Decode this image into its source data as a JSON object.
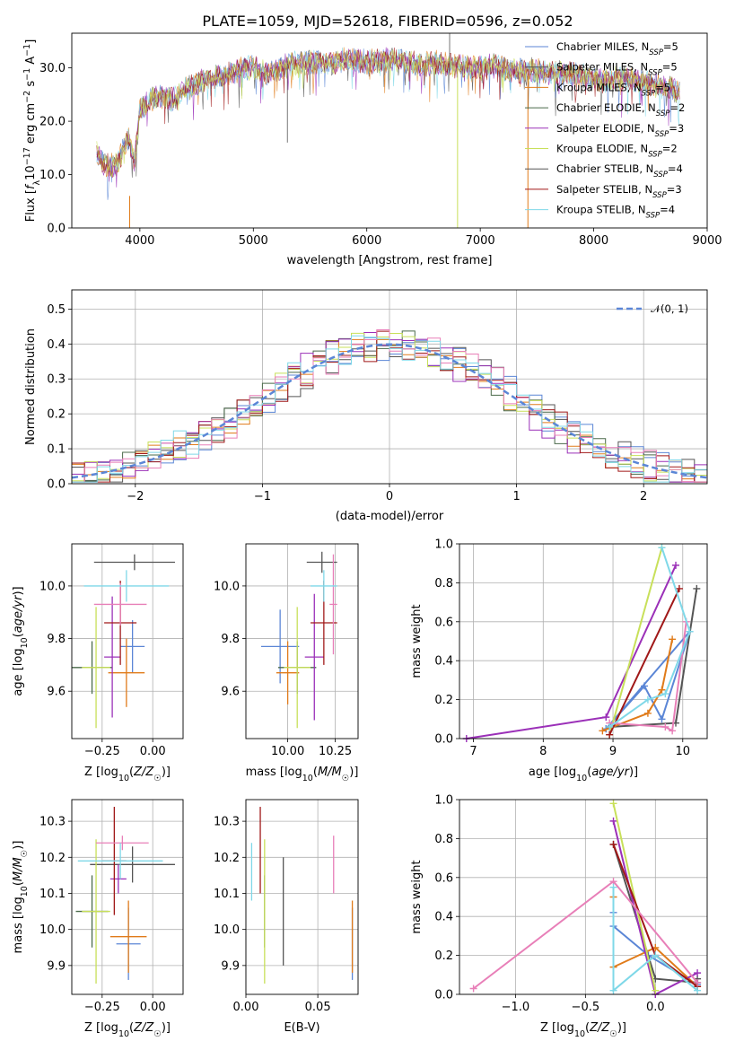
{
  "figure": {
    "title": "PLATE=1059, MJD=52618, FIBERID=0596, z=0.052"
  },
  "colors": {
    "Chabrier MILES": "#5b86d6",
    "Salpeter MILES": "#555555",
    "Kroupa MILES": "#e07b1a",
    "Chabrier ELODIE": "#4a6a4a",
    "Salpeter ELODIE": "#9b30b8",
    "Kroupa ELODIE": "#c8e05a",
    "Chabrier STELIB": "#555555",
    "Salpeter STELIB": "#a01818",
    "Kroupa STELIB": "#7fd8e8",
    "pink": "#e87fb8"
  },
  "chart_data": [
    {
      "type": "line",
      "id": "spectrum",
      "xlabel": "wavelength [Angstrom, rest frame]",
      "ylabel": "Flux [f_λ10^{-17} erg cm^{-2} s^{-1} A^{-1}]",
      "xlim": [
        3400,
        9000
      ],
      "ylim": [
        0,
        36.5
      ],
      "xticks": [
        4000,
        5000,
        6000,
        7000,
        8000,
        9000
      ],
      "yticks": [
        0,
        10,
        20,
        30
      ],
      "grid": false,
      "legend_position": "top-right",
      "legend": [
        {
          "label": "Chabrier MILES, N",
          "sub": "SSP",
          "suffix": "=5",
          "color": "#5b86d6"
        },
        {
          "label": "Salpeter MILES, N",
          "sub": "SSP",
          "suffix": "=5",
          "color": "#555555"
        },
        {
          "label": "Kroupa MILES, N",
          "sub": "SSP",
          "suffix": "=5",
          "color": "#e07b1a"
        },
        {
          "label": "Chabrier ELODIE, N",
          "sub": "SSP",
          "suffix": "=2",
          "color": "#4a6a4a"
        },
        {
          "label": "Salpeter ELODIE, N",
          "sub": "SSP",
          "suffix": "=3",
          "color": "#9b30b8"
        },
        {
          "label": "Kroupa ELODIE, N",
          "sub": "SSP",
          "suffix": "=2",
          "color": "#c8e05a"
        },
        {
          "label": "Chabrier STELIB, N",
          "sub": "SSP",
          "suffix": "=4",
          "color": "#555555"
        },
        {
          "label": "Salpeter STELIB, N",
          "sub": "SSP",
          "suffix": "=3",
          "color": "#a01818"
        },
        {
          "label": "Kroupa STELIB, N",
          "sub": "SSP",
          "suffix": "=4",
          "color": "#7fd8e8"
        }
      ],
      "continuum": [
        [
          3620,
          14
        ],
        [
          3700,
          11.5
        ],
        [
          3800,
          12
        ],
        [
          3900,
          17
        ],
        [
          3950,
          12
        ],
        [
          4000,
          22
        ],
        [
          4100,
          24
        ],
        [
          4200,
          25
        ],
        [
          4300,
          24
        ],
        [
          4400,
          26
        ],
        [
          4500,
          27
        ],
        [
          4600,
          28
        ],
        [
          4700,
          28.5
        ],
        [
          4800,
          29
        ],
        [
          4900,
          30
        ],
        [
          5000,
          30
        ],
        [
          5100,
          29
        ],
        [
          5200,
          29.5
        ],
        [
          5300,
          30.5
        ],
        [
          5400,
          31
        ],
        [
          5500,
          31
        ],
        [
          5600,
          31
        ],
        [
          5700,
          31
        ],
        [
          5800,
          31.5
        ],
        [
          5900,
          31.5
        ],
        [
          6000,
          31
        ],
        [
          6100,
          31.5
        ],
        [
          6200,
          31.5
        ],
        [
          6300,
          31.5
        ],
        [
          6400,
          31
        ],
        [
          6500,
          30.5
        ],
        [
          6600,
          31
        ],
        [
          6700,
          30.5
        ],
        [
          6800,
          30.5
        ],
        [
          6900,
          30
        ],
        [
          7000,
          30
        ],
        [
          7100,
          30.5
        ],
        [
          7200,
          30
        ],
        [
          7300,
          29.5
        ],
        [
          7400,
          29.5
        ],
        [
          7500,
          29.5
        ],
        [
          7600,
          29
        ],
        [
          7700,
          29
        ],
        [
          7800,
          29
        ],
        [
          7900,
          28.5
        ],
        [
          8000,
          28
        ],
        [
          8100,
          27.5
        ],
        [
          8200,
          28
        ],
        [
          8300,
          28
        ],
        [
          8400,
          27.5
        ],
        [
          8500,
          27
        ],
        [
          8600,
          26.5
        ],
        [
          8700,
          26
        ],
        [
          8760,
          25
        ]
      ]
    },
    {
      "type": "histogram",
      "id": "residuals",
      "xlabel": "(data-model)/error",
      "ylabel": "Normed distribution",
      "xlim": [
        -2.5,
        2.5
      ],
      "ylim": [
        0,
        0.555
      ],
      "xticks": [
        -2,
        -1,
        0,
        1,
        2
      ],
      "yticks": [
        0.0,
        0.1,
        0.2,
        0.3,
        0.4,
        0.5
      ],
      "grid": true,
      "legend_position": "top-right",
      "legend": [
        {
          "label": "𝒩(0, 1)",
          "color": "#5b86d6",
          "style": "dashed"
        }
      ],
      "bin_width": 0.1
    },
    {
      "type": "scatter",
      "id": "Z-vs-age",
      "xlabel": "Z [log10(Z/Z☉)]",
      "ylabel": "age [log10(age/yr)]",
      "xlim": [
        -0.4,
        0.15
      ],
      "ylim": [
        9.42,
        10.16
      ],
      "xticks": [
        -0.25,
        0.0
      ],
      "xticklabels": [
        "−0.25",
        "0.00"
      ],
      "yticks": [
        9.6,
        9.8,
        10.0
      ],
      "grid": true,
      "points": [
        {
          "x": -0.1,
          "y": 9.77,
          "xerr": 0.06,
          "yerr": 0.1,
          "color": "#5b86d6"
        },
        {
          "x": -0.09,
          "y": 10.09,
          "xerr": 0.2,
          "yerr": 0.03,
          "color": "#555555"
        },
        {
          "x": -0.13,
          "y": 9.67,
          "xerr": 0.09,
          "yerr": 0.13,
          "color": "#e07b1a"
        },
        {
          "x": -0.3,
          "y": 9.69,
          "xerr": 0.1,
          "yerr": 0.1,
          "color": "#4a6a4a"
        },
        {
          "x": -0.2,
          "y": 9.73,
          "xerr": 0.04,
          "yerr": 0.23,
          "color": "#9b30b8"
        },
        {
          "x": -0.28,
          "y": 9.69,
          "xerr": 0.07,
          "yerr": 0.23,
          "color": "#c8e05a"
        },
        {
          "x": -0.16,
          "y": 9.86,
          "xerr": 0.08,
          "yerr": 0.16,
          "color": "#a01818"
        },
        {
          "x": -0.16,
          "y": 9.93,
          "xerr": 0.13,
          "yerr": 0.08,
          "color": "#e87fb8"
        },
        {
          "x": -0.13,
          "y": 10.0,
          "xerr": 0.21,
          "yerr": 0.06,
          "color": "#7fd8e8"
        }
      ]
    },
    {
      "type": "scatter",
      "id": "mass-vs-age",
      "xlabel": "mass [log10(M/M☉)]",
      "ylabel": "",
      "xlim": [
        9.78,
        10.37
      ],
      "ylim": [
        9.42,
        10.16
      ],
      "xticks": [
        10.0,
        10.25
      ],
      "xticklabels": [
        "10.00",
        "10.25"
      ],
      "yticks": [
        9.6,
        9.8,
        10.0
      ],
      "grid": true,
      "points": [
        {
          "x": 9.96,
          "y": 9.77,
          "xerr": 0.1,
          "yerr": 0.14,
          "color": "#5b86d6"
        },
        {
          "x": 10.18,
          "y": 10.09,
          "xerr": 0.08,
          "yerr": 0.04,
          "color": "#555555"
        },
        {
          "x": 10.0,
          "y": 9.67,
          "xerr": 0.06,
          "yerr": 0.12,
          "color": "#e07b1a"
        },
        {
          "x": 10.05,
          "y": 9.69,
          "xerr": 0.1,
          "yerr": 0.1,
          "color": "#4a6a4a"
        },
        {
          "x": 10.14,
          "y": 9.73,
          "xerr": 0.05,
          "yerr": 0.24,
          "color": "#9b30b8"
        },
        {
          "x": 10.05,
          "y": 9.69,
          "xerr": 0.07,
          "yerr": 0.23,
          "color": "#c8e05a"
        },
        {
          "x": 10.19,
          "y": 9.86,
          "xerr": 0.07,
          "yerr": 0.16,
          "color": "#a01818"
        },
        {
          "x": 10.24,
          "y": 9.93,
          "xerr": 0.02,
          "yerr": 0.19,
          "color": "#e87fb8"
        },
        {
          "x": 10.19,
          "y": 10.0,
          "xerr": 0.07,
          "yerr": 0.06,
          "color": "#7fd8e8"
        }
      ]
    },
    {
      "type": "line",
      "id": "age-vs-weight",
      "xlabel": "age [log10(age/yr)]",
      "ylabel": "mass weight",
      "xlim": [
        6.8,
        10.35
      ],
      "ylim": [
        0,
        1.0
      ],
      "xticks": [
        7,
        8,
        9,
        10
      ],
      "yticks": [
        0.0,
        0.2,
        0.4,
        0.6,
        0.8,
        1.0
      ],
      "grid": true,
      "series": [
        {
          "color": "#5b86d6",
          "x": [
            8.9,
            9.45,
            9.7,
            10.1,
            8.9
          ],
          "y": [
            0.05,
            0.27,
            0.1,
            0.55,
            0.05
          ]
        },
        {
          "color": "#555555",
          "x": [
            8.95,
            9.9,
            10.2
          ],
          "y": [
            0.06,
            0.08,
            0.77
          ]
        },
        {
          "color": "#e07b1a",
          "x": [
            8.85,
            9.5,
            9.7,
            9.85
          ],
          "y": [
            0.04,
            0.13,
            0.25,
            0.51
          ]
        },
        {
          "color": "#9b30b8",
          "x": [
            6.9,
            8.9,
            9.9
          ],
          "y": [
            0.0,
            0.11,
            0.89
          ]
        },
        {
          "color": "#c8e05a",
          "x": [
            8.95,
            9.7
          ],
          "y": [
            0.02,
            0.98
          ]
        },
        {
          "color": "#a01818",
          "x": [
            8.95,
            9.95
          ],
          "y": [
            0.02,
            0.77
          ]
        },
        {
          "color": "#e87fb8",
          "x": [
            8.95,
            9.75,
            9.85,
            10.05
          ],
          "y": [
            0.08,
            0.06,
            0.04,
            0.6
          ]
        },
        {
          "color": "#7fd8e8",
          "x": [
            8.95,
            9.5,
            9.75,
            10.1,
            9.7
          ],
          "y": [
            0.06,
            0.2,
            0.23,
            0.55,
            0.98
          ]
        }
      ]
    },
    {
      "type": "scatter",
      "id": "Z-vs-mass",
      "xlabel": "Z [log10(Z/Z☉)]",
      "ylabel": "mass [log10(M/M☉)]",
      "xlim": [
        -0.4,
        0.15
      ],
      "ylim": [
        9.82,
        10.36
      ],
      "xticks": [
        -0.25,
        0.0
      ],
      "xticklabels": [
        "−0.25",
        "0.00"
      ],
      "yticks": [
        9.9,
        10.0,
        10.1,
        10.2,
        10.3
      ],
      "grid": true,
      "points": [
        {
          "x": -0.12,
          "y": 9.96,
          "xerr": 0.06,
          "yerr": 0.1,
          "color": "#5b86d6"
        },
        {
          "x": -0.1,
          "y": 10.18,
          "xerr": 0.21,
          "yerr": 0.05,
          "color": "#555555"
        },
        {
          "x": -0.12,
          "y": 9.98,
          "xerr": 0.09,
          "yerr": 0.1,
          "color": "#e07b1a"
        },
        {
          "x": -0.3,
          "y": 10.05,
          "xerr": 0.08,
          "yerr": 0.1,
          "color": "#4a6a4a"
        },
        {
          "x": -0.17,
          "y": 10.14,
          "xerr": 0.04,
          "yerr": 0.04,
          "color": "#9b30b8"
        },
        {
          "x": -0.28,
          "y": 10.05,
          "xerr": 0.07,
          "yerr": 0.2,
          "color": "#c8e05a"
        },
        {
          "x": -0.19,
          "y": 10.19,
          "xerr": 0.06,
          "yerr": 0.15,
          "color": "#a01818"
        },
        {
          "x": -0.15,
          "y": 10.24,
          "xerr": 0.13,
          "yerr": 0.02,
          "color": "#e87fb8"
        },
        {
          "x": -0.16,
          "y": 10.19,
          "xerr": 0.21,
          "yerr": 0.05,
          "color": "#7fd8e8"
        }
      ]
    },
    {
      "type": "scatter",
      "id": "EBV-vs-mass",
      "xlabel": "E(B-V)",
      "ylabel": "",
      "xlim": [
        0,
        0.078
      ],
      "ylim": [
        9.82,
        10.36
      ],
      "xticks": [
        0.0,
        0.05
      ],
      "xticklabels": [
        "0.00",
        "0.05"
      ],
      "yticks": [
        9.9,
        10.0,
        10.1,
        10.2,
        10.3
      ],
      "grid": true,
      "points": [
        {
          "x": 0.074,
          "y": 9.96,
          "yerr": 0.1,
          "color": "#5b86d6"
        },
        {
          "x": 0.026,
          "y": 10.05,
          "yerr": 0.15,
          "color": "#555555"
        },
        {
          "x": 0.074,
          "y": 9.98,
          "yerr": 0.1,
          "color": "#e07b1a"
        },
        {
          "x": 0.013,
          "y": 10.05,
          "yerr": 0.1,
          "color": "#4a6a4a"
        },
        {
          "x": 0.013,
          "y": 10.05,
          "yerr": 0.2,
          "color": "#c8e05a"
        },
        {
          "x": 0.01,
          "y": 10.22,
          "yerr": 0.12,
          "color": "#a01818"
        },
        {
          "x": 0.061,
          "y": 10.18,
          "yerr": 0.08,
          "color": "#e87fb8"
        },
        {
          "x": 0.004,
          "y": 10.16,
          "yerr": 0.08,
          "color": "#7fd8e8"
        }
      ]
    },
    {
      "type": "line",
      "id": "Z-vs-weight",
      "xlabel": "Z [log10(Z/Z☉)]",
      "ylabel": "mass weight",
      "xlim": [
        -1.4,
        0.37
      ],
      "ylim": [
        0,
        1.0
      ],
      "xticks": [
        -1.0,
        -0.5,
        0.0
      ],
      "xticklabels": [
        "−1.0",
        "−0.5",
        "0.0"
      ],
      "yticks": [
        0.0,
        0.2,
        0.4,
        0.6,
        0.8,
        1.0
      ],
      "grid": true,
      "series": [
        {
          "color": "#5b86d6",
          "x": [
            -0.3,
            -0.3,
            -0.05,
            0.3
          ],
          "y": [
            0.42,
            0.35,
            0.2,
            0.05
          ]
        },
        {
          "color": "#555555",
          "x": [
            -0.3,
            0.0,
            0.3,
            0.3
          ],
          "y": [
            0.77,
            0.08,
            0.06,
            0.08
          ]
        },
        {
          "color": "#e07b1a",
          "x": [
            -0.3,
            -0.3,
            0.0,
            0.3
          ],
          "y": [
            0.5,
            0.14,
            0.24,
            0.04
          ]
        },
        {
          "color": "#9b30b8",
          "x": [
            -0.3,
            0.0,
            0.3
          ],
          "y": [
            0.89,
            0.0,
            0.11
          ]
        },
        {
          "color": "#c8e05a",
          "x": [
            -0.3,
            0.0
          ],
          "y": [
            0.98,
            0.02
          ]
        },
        {
          "color": "#a01818",
          "x": [
            -0.3,
            0.0,
            0.3
          ],
          "y": [
            0.77,
            0.2,
            0.04
          ]
        },
        {
          "color": "#e87fb8",
          "x": [
            -1.3,
            -0.3,
            0.3
          ],
          "y": [
            0.03,
            0.58,
            0.06
          ]
        },
        {
          "color": "#7fd8e8",
          "x": [
            -0.3,
            -0.3,
            0.0,
            0.3
          ],
          "y": [
            0.55,
            0.02,
            0.2,
            0.02
          ]
        }
      ]
    }
  ]
}
